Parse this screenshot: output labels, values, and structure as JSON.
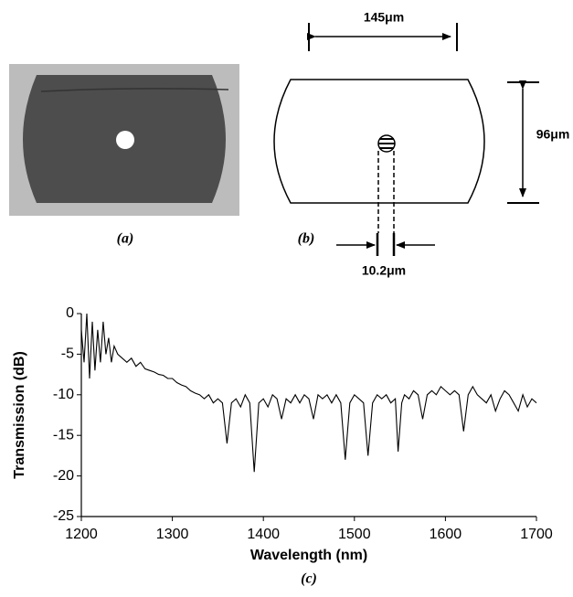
{
  "panels": {
    "a": "(a)",
    "b": "(b)"
  },
  "diagram": {
    "width": "145μm",
    "height": "96μm",
    "core": "10.2μm"
  },
  "chart_data": {
    "type": "line",
    "caption": "(c)",
    "x_label": "Wavelength (nm)",
    "y_label": "Transmission (dB)",
    "color": "#000000",
    "xlim": [
      1200,
      1700
    ],
    "ylim": [
      -25,
      0
    ],
    "xticks": [
      1200,
      1300,
      1400,
      1500,
      1600,
      1700
    ],
    "yticks": [
      0,
      -5,
      -10,
      -15,
      -20,
      -25
    ],
    "x": [
      1200,
      1203,
      1206,
      1209,
      1212,
      1215,
      1218,
      1221,
      1224,
      1227,
      1230,
      1233,
      1236,
      1240,
      1245,
      1250,
      1255,
      1260,
      1265,
      1270,
      1275,
      1280,
      1285,
      1290,
      1295,
      1300,
      1305,
      1310,
      1315,
      1320,
      1325,
      1330,
      1335,
      1340,
      1345,
      1350,
      1355,
      1360,
      1365,
      1370,
      1375,
      1380,
      1385,
      1390,
      1395,
      1400,
      1405,
      1410,
      1415,
      1420,
      1425,
      1430,
      1435,
      1440,
      1445,
      1450,
      1455,
      1460,
      1465,
      1470,
      1475,
      1480,
      1485,
      1490,
      1495,
      1500,
      1505,
      1510,
      1515,
      1520,
      1525,
      1530,
      1535,
      1540,
      1545,
      1548,
      1552,
      1555,
      1560,
      1565,
      1570,
      1575,
      1580,
      1585,
      1590,
      1595,
      1600,
      1605,
      1610,
      1615,
      1620,
      1625,
      1630,
      1635,
      1640,
      1645,
      1650,
      1655,
      1660,
      1665,
      1670,
      1675,
      1680,
      1685,
      1690,
      1695,
      1700
    ],
    "values": [
      -2,
      -6,
      0,
      -8,
      -1,
      -7,
      -2,
      -6,
      -1,
      -5,
      -3,
      -6,
      -4,
      -5,
      -5.5,
      -6,
      -5.5,
      -6.5,
      -6,
      -6.8,
      -7,
      -7.2,
      -7.5,
      -7.6,
      -8,
      -8,
      -8.5,
      -8.8,
      -9,
      -9.5,
      -9.8,
      -10,
      -10.5,
      -10,
      -11,
      -10.5,
      -11,
      -16,
      -11,
      -10.5,
      -11.5,
      -10,
      -11,
      -19.5,
      -11,
      -10.5,
      -11.5,
      -10,
      -10.5,
      -13,
      -10.5,
      -11,
      -10,
      -11,
      -10,
      -10.5,
      -13,
      -10,
      -10.5,
      -10,
      -11,
      -10,
      -11,
      -18,
      -11,
      -10,
      -10.5,
      -11,
      -17.5,
      -11,
      -10,
      -10.5,
      -10,
      -11,
      -10.5,
      -17,
      -11,
      -10,
      -10.5,
      -9.5,
      -10,
      -13,
      -10,
      -9.5,
      -10,
      -9,
      -9.5,
      -10,
      -9.5,
      -10,
      -14.5,
      -10,
      -9,
      -10,
      -10.5,
      -11,
      -10,
      -12,
      -10.5,
      -9.5,
      -10,
      -11,
      -12,
      -10,
      -11.5,
      -10.5,
      -11
    ]
  }
}
